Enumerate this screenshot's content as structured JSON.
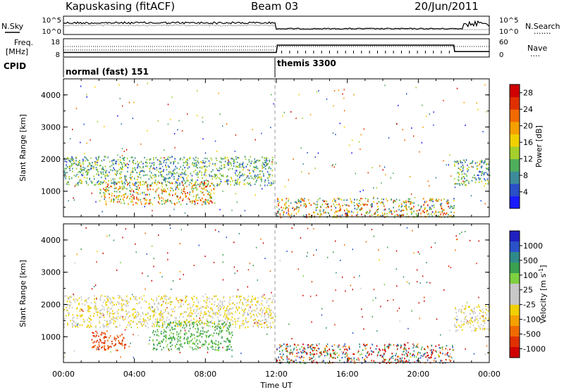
{
  "header": {
    "station": "Kapuskasing (fitACF)",
    "beam": "Beam 03",
    "date": "20/Jun/2011"
  },
  "noise_panel": {
    "left_label": "N.Sky",
    "left_ticks": [
      "10^5",
      "10^0"
    ],
    "right_ticks": [
      "10^5",
      "10^0"
    ],
    "right_label": "N.Search",
    "right_legend_line": "......."
  },
  "freq_panel": {
    "left_label_1": "Freq.",
    "left_label_2": "[MHz]",
    "left_ticks": [
      "18",
      "8"
    ],
    "right_ticks": [
      "60",
      "0"
    ],
    "right_label": "Nave",
    "right_legend_line": "....",
    "freq_values": [
      {
        "t": 0,
        "mhz": 10.5
      },
      {
        "t": 12,
        "mhz": 10.5
      },
      {
        "t": 12.05,
        "mhz": 14.5
      },
      {
        "t": 22,
        "mhz": 14.5
      },
      {
        "t": 22.05,
        "mhz": 11
      },
      {
        "t": 24,
        "mhz": 11
      }
    ]
  },
  "cpid": {
    "label": "CPID",
    "modes": [
      {
        "name": "normal (fast) 151",
        "start": 0,
        "end": 12
      },
      {
        "name": "themis 3300",
        "start": 12,
        "end": 24
      }
    ]
  },
  "power_panel": {
    "ylabel": "Slant Range [km]",
    "yticks": [
      "1000",
      "2000",
      "3000",
      "4000"
    ],
    "ytick_values": [
      1000,
      2000,
      3000,
      4000
    ],
    "ylim": [
      200,
      4500
    ],
    "colorbar_label": "Power [dB]",
    "colorbar_ticks": [
      "4",
      "8",
      "12",
      "16",
      "20",
      "24",
      "28"
    ],
    "colorbar_colors": [
      "#1a1aff",
      "#2a4fc8",
      "#3d8b9a",
      "#4fae5b",
      "#a4cf2c",
      "#f0d000",
      "#f6a000",
      "#f06a00",
      "#e03000",
      "#d00000"
    ]
  },
  "velocity_panel": {
    "ylabel": "Slant Range [km]",
    "yticks": [
      "1000",
      "2000",
      "3000",
      "4000"
    ],
    "ytick_values": [
      1000,
      2000,
      3000,
      4000
    ],
    "ylim": [
      200,
      4500
    ],
    "colorbar_label": "Velocity [m s",
    "colorbar_sup": "-1",
    "colorbar_label_end": "]",
    "colorbar_ticks": [
      "1000",
      "500",
      "100",
      "25",
      "-25",
      "-100",
      "-500",
      "-1000"
    ],
    "colorbar_colors": [
      "#2020c0",
      "#2a52c8",
      "#2f8a8a",
      "#3aa050",
      "#7ed040",
      "#c8c8c8",
      "#c8c8c8",
      "#f0d000",
      "#f6a000",
      "#f06a00",
      "#e03000",
      "#d00000"
    ]
  },
  "x_axis": {
    "label": "Time UT",
    "ticks": [
      "00:00",
      "04:00",
      "08:00",
      "12:00",
      "16:00",
      "20:00",
      "00:00"
    ],
    "tick_hours": [
      0,
      4,
      8,
      12,
      16,
      20,
      24
    ]
  },
  "chart_data": [
    {
      "type": "heatmap",
      "title": "Power",
      "x": "time UT (hours)",
      "xlim": [
        0,
        24
      ],
      "ylabel": "Slant Range [km]",
      "ylim": [
        200,
        4500
      ],
      "value_label": "Power [dB]",
      "value_range": [
        0,
        30
      ],
      "regions": [
        {
          "t_start": 0.0,
          "t_end": 11.8,
          "range_km": [
            1200,
            2100
          ],
          "power_db": [
            4,
            16
          ]
        },
        {
          "t_start": 2.0,
          "t_end": 8.5,
          "range_km": [
            600,
            1300
          ],
          "power_db": [
            8,
            28
          ]
        },
        {
          "t_start": 12.0,
          "t_end": 22.0,
          "range_km": [
            200,
            800
          ],
          "power_db": [
            4,
            28
          ]
        },
        {
          "t_start": 22.0,
          "t_end": 24.0,
          "range_km": [
            1200,
            2000
          ],
          "power_db": [
            4,
            16
          ]
        }
      ]
    },
    {
      "type": "heatmap",
      "title": "Velocity",
      "x": "time UT (hours)",
      "xlim": [
        0,
        24
      ],
      "ylabel": "Slant Range [km]",
      "ylim": [
        200,
        4500
      ],
      "value_label": "Velocity [m s-1]",
      "value_range": [
        -1000,
        1000
      ],
      "regions": [
        {
          "t_start": 0.0,
          "t_end": 11.8,
          "range_km": [
            1300,
            2300
          ],
          "velocity": [
            -25,
            25
          ]
        },
        {
          "t_start": 1.5,
          "t_end": 3.5,
          "range_km": [
            600,
            1200
          ],
          "velocity": [
            -500,
            -100
          ]
        },
        {
          "t_start": 5.0,
          "t_end": 9.5,
          "range_km": [
            600,
            1500
          ],
          "velocity": [
            100,
            500
          ]
        },
        {
          "t_start": 12.0,
          "t_end": 22.0,
          "range_km": [
            200,
            800
          ],
          "velocity": [
            -1000,
            1000
          ]
        },
        {
          "t_start": 22.0,
          "t_end": 24.0,
          "range_km": [
            1200,
            2000
          ],
          "velocity": [
            -25,
            25
          ]
        }
      ]
    }
  ]
}
